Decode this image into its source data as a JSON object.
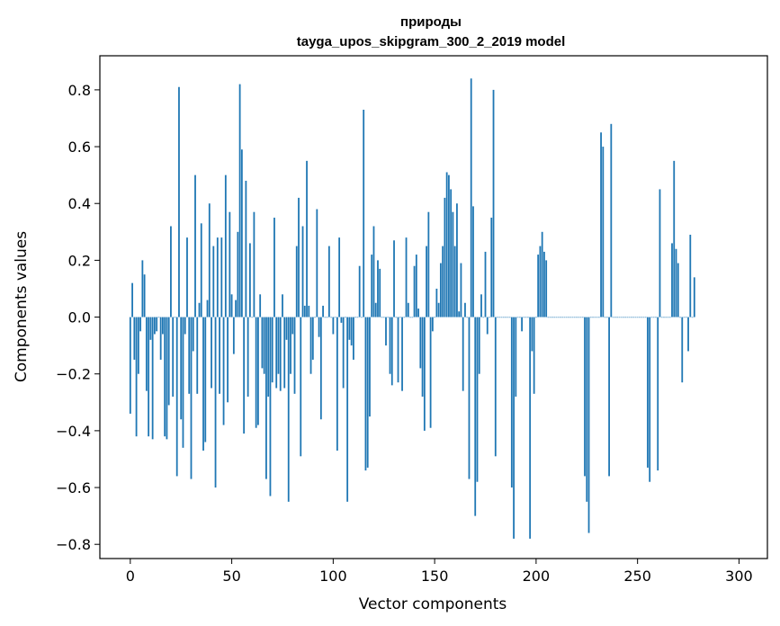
{
  "chart_data": {
    "type": "bar",
    "title_line1": "природы",
    "title_line2": "tayga_upos_skipgram_300_2_2019 model",
    "xlabel": "Vector components",
    "ylabel": "Components values",
    "xlim": [
      -15,
      314
    ],
    "ylim": [
      -0.85,
      0.92
    ],
    "xticks": [
      0,
      50,
      100,
      150,
      200,
      250,
      300
    ],
    "xtick_labels": [
      "0",
      "50",
      "100",
      "150",
      "200",
      "250",
      "300"
    ],
    "yticks": [
      -0.8,
      -0.6,
      -0.4,
      -0.2,
      0.0,
      0.2,
      0.4,
      0.6,
      0.8
    ],
    "ytick_labels": [
      "−0.8",
      "−0.6",
      "−0.4",
      "−0.2",
      "0.0",
      "0.2",
      "0.4",
      "0.6",
      "0.8"
    ],
    "bar_color": "#1f77b4",
    "grid": false,
    "values": [
      -0.34,
      0.12,
      -0.15,
      -0.42,
      -0.2,
      -0.05,
      0.2,
      0.15,
      -0.26,
      -0.42,
      -0.08,
      -0.43,
      -0.06,
      -0.05,
      0.0,
      -0.15,
      -0.06,
      -0.42,
      -0.43,
      -0.31,
      0.32,
      -0.28,
      0.0,
      -0.56,
      0.81,
      -0.36,
      -0.46,
      -0.06,
      0.28,
      -0.27,
      -0.57,
      -0.12,
      0.5,
      -0.27,
      0.05,
      0.33,
      -0.47,
      -0.44,
      0.06,
      0.4,
      -0.25,
      0.25,
      -0.6,
      0.28,
      -0.27,
      0.28,
      -0.38,
      0.5,
      -0.3,
      0.37,
      0.08,
      -0.13,
      0.06,
      0.3,
      0.82,
      0.59,
      -0.41,
      0.48,
      -0.28,
      0.26,
      0.0,
      0.37,
      -0.39,
      -0.38,
      0.08,
      -0.18,
      -0.2,
      -0.57,
      -0.28,
      -0.63,
      -0.23,
      0.35,
      -0.25,
      -0.2,
      -0.26,
      0.08,
      -0.25,
      -0.08,
      -0.65,
      -0.2,
      -0.06,
      -0.27,
      0.25,
      0.42,
      -0.49,
      0.32,
      0.04,
      0.55,
      0.04,
      -0.2,
      -0.15,
      0.0,
      0.38,
      -0.07,
      -0.36,
      0.04,
      0.0,
      0.0,
      0.25,
      0.0,
      -0.06,
      0.0,
      -0.47,
      0.28,
      -0.02,
      -0.25,
      0.0,
      -0.65,
      -0.08,
      -0.1,
      -0.15,
      0.0,
      0.0,
      0.18,
      0.0,
      0.73,
      -0.54,
      -0.53,
      -0.35,
      0.22,
      0.32,
      0.05,
      0.2,
      0.17,
      0.0,
      0.0,
      -0.1,
      0.0,
      -0.2,
      -0.24,
      0.27,
      0.0,
      -0.23,
      0.0,
      -0.26,
      0.0,
      0.28,
      0.05,
      0.0,
      0.0,
      0.18,
      0.22,
      0.03,
      -0.18,
      -0.28,
      -0.4,
      0.25,
      0.37,
      -0.39,
      -0.05,
      0.0,
      0.1,
      0.05,
      0.19,
      0.25,
      0.42,
      0.51,
      0.5,
      0.45,
      0.37,
      0.25,
      0.4,
      0.02,
      0.19,
      -0.26,
      0.05,
      0.0,
      -0.57,
      0.84,
      0.39,
      -0.7,
      -0.58,
      -0.2,
      0.08,
      0.0,
      0.23,
      -0.06,
      0.0,
      0.35,
      0.8,
      -0.49,
      0.0,
      0.0,
      0.0,
      0.0,
      0.0,
      0.0,
      0.0,
      -0.6,
      -0.78,
      -0.28,
      0.0,
      0.0,
      -0.05,
      0.0,
      0.0,
      0.0,
      -0.78,
      -0.12,
      -0.27,
      0.0,
      0.22,
      0.25,
      0.3,
      0.23,
      0.2,
      0.0,
      0.0,
      0.0,
      0.0,
      0.0,
      0.0,
      0.0,
      0.0,
      0.0,
      0.0,
      0.0,
      0.0,
      0.0,
      0.0,
      0.0,
      0.0,
      0.0,
      0.0,
      -0.56,
      -0.65,
      -0.76,
      0.0,
      0.0,
      0.0,
      0.0,
      0.0,
      0.65,
      0.6,
      0.0,
      0.0,
      -0.56,
      0.68,
      0.0,
      0.0,
      0.0,
      0.0,
      0.0,
      0.0,
      0.0,
      0.0,
      0.0,
      0.0,
      0.0,
      0.0,
      0.0,
      0.0,
      0.0,
      0.0,
      0.0,
      -0.53,
      -0.58,
      0.0,
      0.0,
      0.0,
      -0.54,
      0.45,
      0.0,
      0.0,
      0.0,
      0.0,
      0.0,
      0.26,
      0.55,
      0.24,
      0.19,
      0.0,
      -0.23,
      0.0,
      0.0,
      -0.12,
      0.29,
      0.0,
      0.14
    ],
    "values_note_ignore": null
  }
}
